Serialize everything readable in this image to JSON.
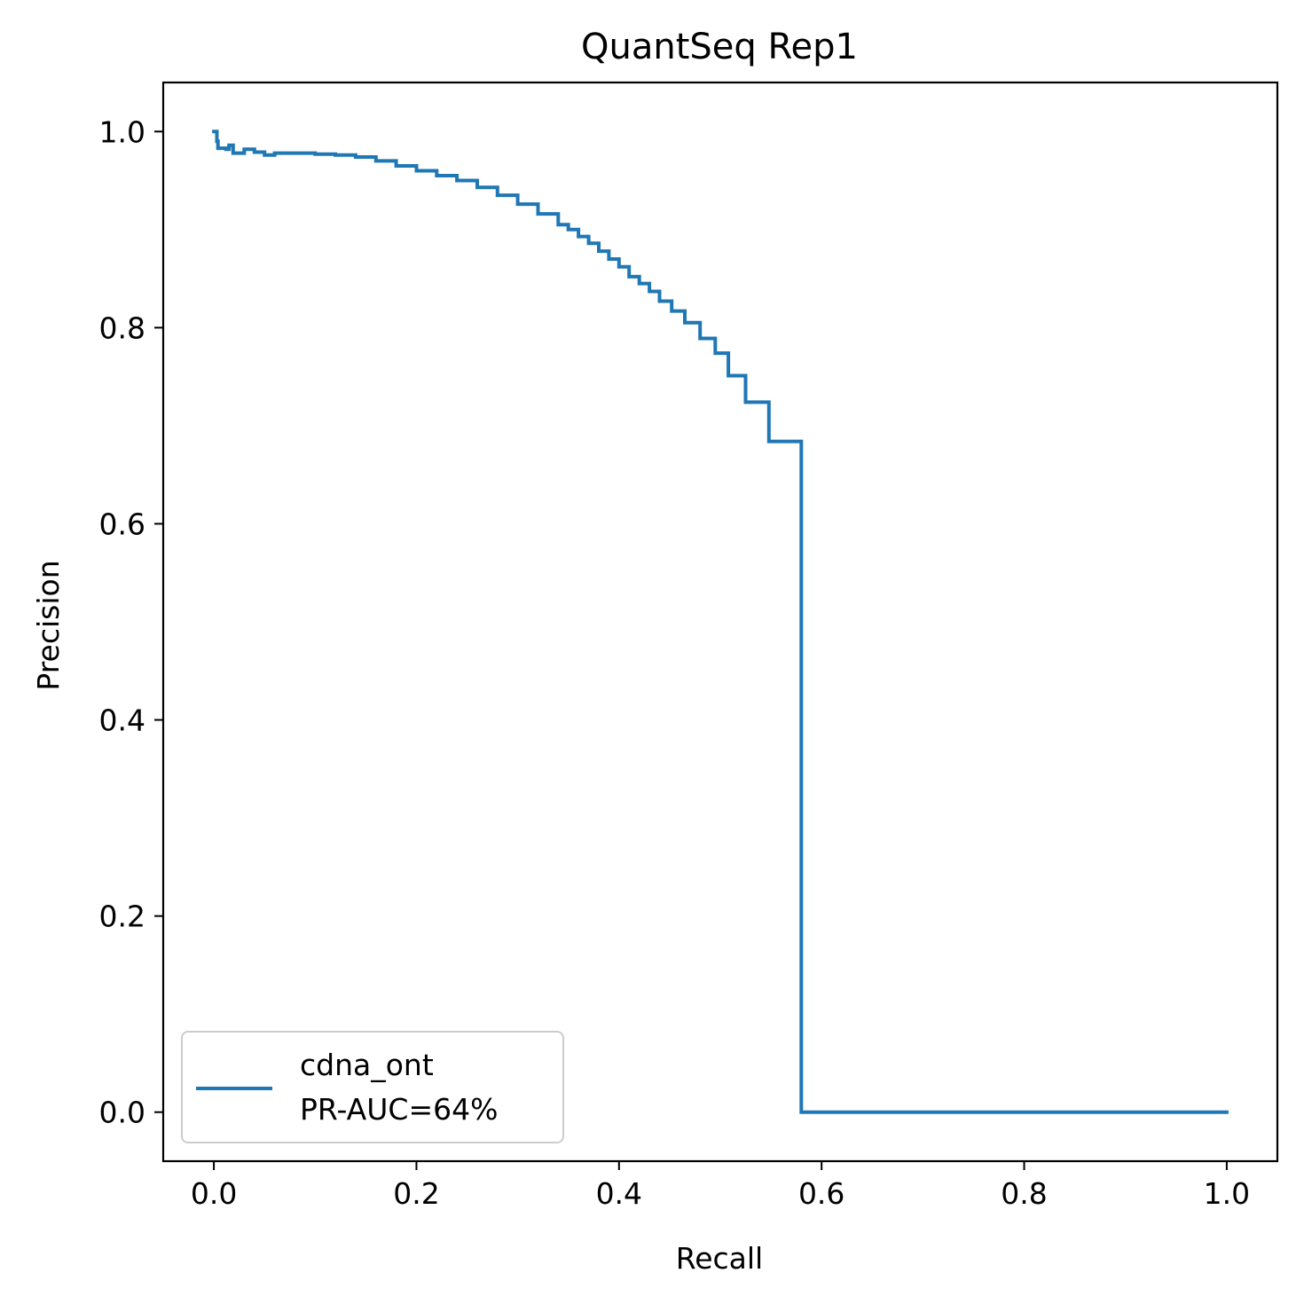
{
  "chart_data": {
    "type": "line",
    "title": "QuantSeq Rep1",
    "xlabel": "Recall",
    "ylabel": "Precision",
    "xlim": [
      -0.05,
      1.05
    ],
    "ylim": [
      -0.05,
      1.05
    ],
    "xticks": [
      0.0,
      0.2,
      0.4,
      0.6,
      0.8,
      1.0
    ],
    "yticks": [
      0.0,
      0.2,
      0.4,
      0.6,
      0.8,
      1.0
    ],
    "xtick_labels": [
      "0.0",
      "0.2",
      "0.4",
      "0.6",
      "0.8",
      "1.0"
    ],
    "ytick_labels": [
      "0.0",
      "0.2",
      "0.4",
      "0.6",
      "0.8",
      "1.0"
    ],
    "grid": false,
    "legend_position": "lower-left",
    "series": [
      {
        "name": "cdna_ont\nPR-AUC=64%",
        "legend_lines": [
          "cdna_ont",
          "PR-AUC=64%"
        ],
        "color": "#1f77b4",
        "step": true,
        "points": [
          [
            0.0,
            1.0
          ],
          [
            0.003,
            1.0
          ],
          [
            0.003,
            0.99
          ],
          [
            0.004,
            0.983
          ],
          [
            0.008,
            0.983
          ],
          [
            0.012,
            0.982
          ],
          [
            0.015,
            0.986
          ],
          [
            0.019,
            0.978
          ],
          [
            0.024,
            0.978
          ],
          [
            0.03,
            0.982
          ],
          [
            0.04,
            0.979
          ],
          [
            0.05,
            0.976
          ],
          [
            0.06,
            0.978
          ],
          [
            0.08,
            0.978
          ],
          [
            0.1,
            0.977
          ],
          [
            0.12,
            0.976
          ],
          [
            0.14,
            0.974
          ],
          [
            0.16,
            0.97
          ],
          [
            0.18,
            0.965
          ],
          [
            0.2,
            0.96
          ],
          [
            0.22,
            0.955
          ],
          [
            0.24,
            0.95
          ],
          [
            0.26,
            0.943
          ],
          [
            0.28,
            0.935
          ],
          [
            0.3,
            0.926
          ],
          [
            0.32,
            0.916
          ],
          [
            0.34,
            0.905
          ],
          [
            0.35,
            0.9
          ],
          [
            0.36,
            0.893
          ],
          [
            0.37,
            0.886
          ],
          [
            0.38,
            0.878
          ],
          [
            0.39,
            0.87
          ],
          [
            0.4,
            0.862
          ],
          [
            0.41,
            0.852
          ],
          [
            0.42,
            0.845
          ],
          [
            0.43,
            0.837
          ],
          [
            0.44,
            0.827
          ],
          [
            0.452,
            0.817
          ],
          [
            0.465,
            0.805
          ],
          [
            0.48,
            0.789
          ],
          [
            0.495,
            0.774
          ],
          [
            0.508,
            0.751
          ],
          [
            0.525,
            0.724
          ],
          [
            0.548,
            0.684
          ],
          [
            0.58,
            0.618
          ],
          [
            0.58,
            0.0
          ],
          [
            1.0,
            0.0
          ]
        ]
      }
    ]
  }
}
